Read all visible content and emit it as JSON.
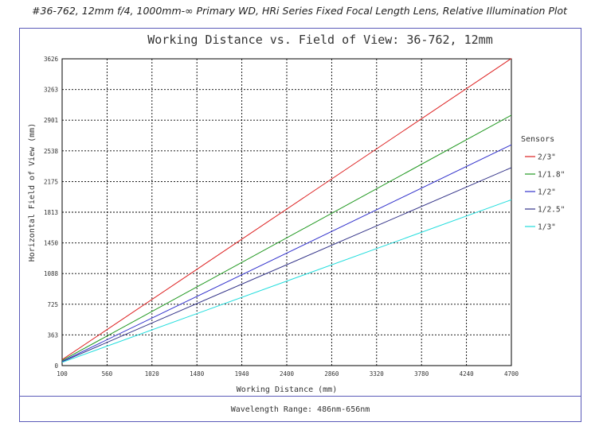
{
  "page_title": "#36-762, 12mm f/4, 1000mm-∞ Primary WD, HRi Series Fixed Focal Length Lens, Relative Illumination Plot",
  "footer": "Wavelength Range: 486nm-656nm",
  "colors": {
    "frame": "#5a5ab8",
    "grid": "#000000"
  },
  "chart_data": {
    "type": "line",
    "title": "Working Distance vs. Field of View: 36-762, 12mm",
    "xlabel": "Working Distance (mm)",
    "ylabel": "Horizontal Field of View (mm)",
    "xlim": [
      100,
      4700
    ],
    "ylim": [
      0,
      3626
    ],
    "x_ticks": [
      100,
      560,
      1020,
      1480,
      1940,
      2400,
      2860,
      3320,
      3780,
      4240,
      4700
    ],
    "y_ticks": [
      0,
      363,
      725,
      1088,
      1450,
      1813,
      2175,
      2538,
      2901,
      3263,
      3626
    ],
    "grid": true,
    "legend_title": "Sensors",
    "legend_position": "right",
    "series": [
      {
        "name": "2/3\"",
        "color": "#dd2222",
        "x": [
          100,
          4700
        ],
        "y": [
          70,
          3630
        ]
      },
      {
        "name": "1/1.8\"",
        "color": "#229922",
        "x": [
          100,
          4700
        ],
        "y": [
          60,
          2960
        ]
      },
      {
        "name": "1/2\"",
        "color": "#3333cc",
        "x": [
          100,
          4700
        ],
        "y": [
          50,
          2610
        ]
      },
      {
        "name": "1/2.5\"",
        "color": "#333388",
        "x": [
          100,
          4700
        ],
        "y": [
          45,
          2340
        ]
      },
      {
        "name": "1/3\"",
        "color": "#22dddd",
        "x": [
          100,
          4700
        ],
        "y": [
          38,
          1960
        ]
      }
    ]
  }
}
